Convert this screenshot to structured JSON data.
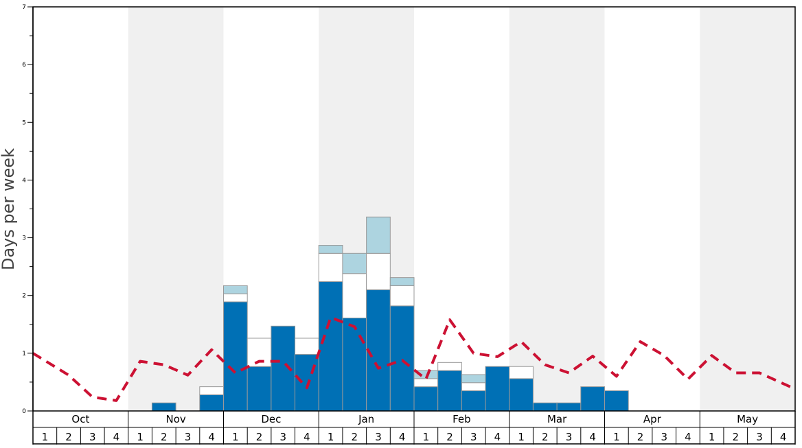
{
  "chart_data": {
    "type": "bar",
    "ylabel": "Days per week",
    "ylim": [
      0,
      7
    ],
    "y_ticks": [
      "0",
      "1",
      "2",
      "3",
      "4",
      "5",
      "6",
      "7"
    ],
    "months": [
      "Oct",
      "Nov",
      "Dec",
      "Jan",
      "Feb",
      "Mar",
      "Apr",
      "May"
    ],
    "weeks": [
      "1",
      "2",
      "3",
      "4"
    ],
    "shaded_months": [
      "Nov",
      "Jan",
      "Mar",
      "May"
    ],
    "colors": {
      "bar_dark": "#0070b5",
      "bar_white": "#ffffff",
      "bar_light": "#add4e0",
      "line": "#cc1133",
      "shade": "#f0f0f0",
      "axis": "#000000",
      "label": "#444444"
    },
    "series": [
      {
        "values": [
          0,
          0,
          0,
          0,
          0,
          0.14,
          0,
          0.28,
          1.89,
          0.77,
          1.47,
          0.98,
          2.24,
          1.61,
          2.1,
          1.82,
          0.42,
          0.7,
          0.35,
          0.77,
          0.56,
          0.14,
          0.14,
          0.42,
          0.35,
          0,
          0,
          0,
          0,
          0,
          0,
          0
        ]
      },
      {
        "values": [
          0,
          0,
          0,
          0,
          0,
          0,
          0,
          0.14,
          0.14,
          0.49,
          0,
          0.28,
          0.49,
          0.77,
          0.63,
          0.35,
          0.14,
          0.14,
          0.14,
          0,
          0.21,
          0,
          0,
          0,
          0,
          0,
          0,
          0,
          0,
          0,
          0,
          0
        ]
      },
      {
        "values": [
          0,
          0,
          0,
          0,
          0,
          0,
          0,
          0,
          0.14,
          0,
          0,
          0,
          0.14,
          0.35,
          0.63,
          0.14,
          0.14,
          0,
          0.14,
          0,
          0,
          0,
          0,
          0,
          0,
          0,
          0,
          0,
          0,
          0,
          0,
          0
        ]
      },
      {
        "values": [
          1.0,
          0.62,
          0.24,
          0.18,
          0.86,
          0.8,
          0.62,
          1.06,
          0.66,
          0.86,
          0.86,
          0.4,
          1.62,
          1.46,
          0.74,
          0.88,
          0.55,
          1.58,
          1.0,
          0.94,
          1.2,
          0.8,
          0.66,
          0.95,
          0.6,
          1.2,
          0.96,
          0.55,
          0.96,
          0.66,
          0.66,
          0.38
        ]
      }
    ]
  }
}
